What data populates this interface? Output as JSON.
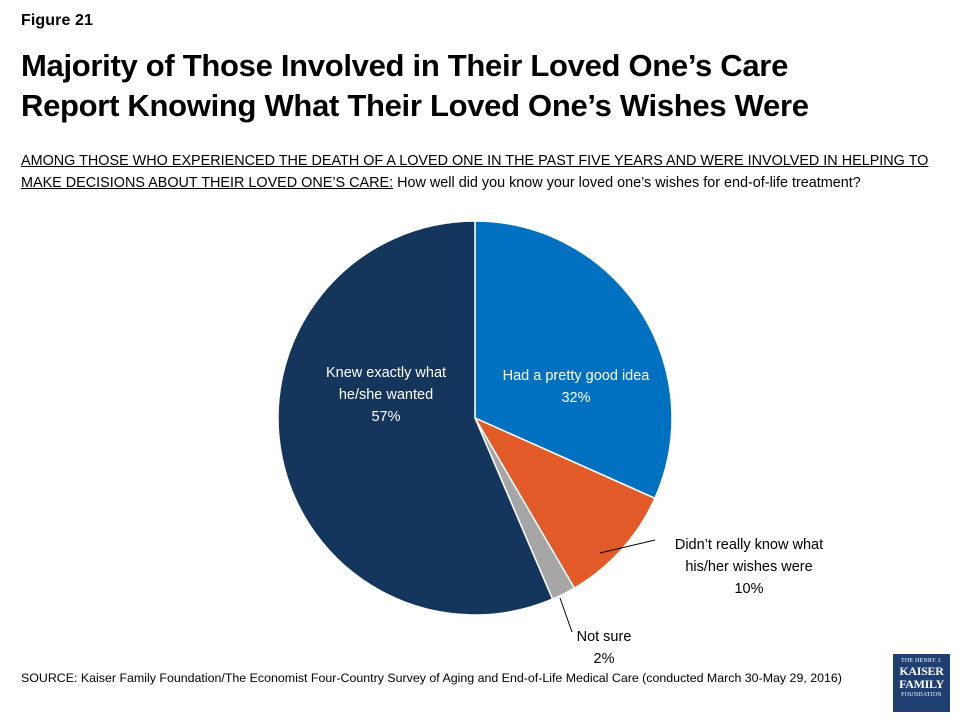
{
  "figure_label": "Figure 21",
  "title_line1": "Majority of Those Involved in Their Loved One’s Care",
  "title_line2": "Report Knowing What Their Loved One’s Wishes Were",
  "question": {
    "population": "AMONG THOSE WHO EXPERIENCED THE DEATH OF A LOVED ONE IN THE PAST FIVE YEARS AND WERE INVOLVED IN HELPING TO MAKE DECISIONS ABOUT THEIR LOVED ONE’S CARE:",
    "text": "How well did you know your loved one’s wishes for end-of-life treatment?"
  },
  "chart_data": {
    "type": "pie",
    "start_angle_deg": 0,
    "direction": "clockwise",
    "slices": [
      {
        "label_lines": [
          "Had a pretty good idea"
        ],
        "value_label": "32%",
        "value": 32,
        "color": "#0070c0",
        "text_color": "#ffffff"
      },
      {
        "label_lines": [
          "Didn’t really know what",
          "his/her wishes were"
        ],
        "value_label": "10%",
        "value": 10,
        "color": "#e15a28",
        "text_color": "#000000"
      },
      {
        "label_lines": [
          "Not sure"
        ],
        "value_label": "2%",
        "value": 2,
        "color": "#a6a6a6",
        "text_color": "#000000"
      },
      {
        "label_lines": [
          "Knew exactly what",
          "he/she wanted"
        ],
        "value_label": "57%",
        "value": 57,
        "color": "#14355c",
        "text_color": "#ffffff"
      }
    ]
  },
  "source": "SOURCE: Kaiser Family Foundation/The Economist Four-Country Survey of Aging and End-of-Life Medical Care (conducted March 30-May 29, 2016)",
  "logo": {
    "line1": "THE HENRY J.",
    "line2": "KAISER",
    "line3": "FAMILY",
    "line4": "FOUNDATION"
  }
}
